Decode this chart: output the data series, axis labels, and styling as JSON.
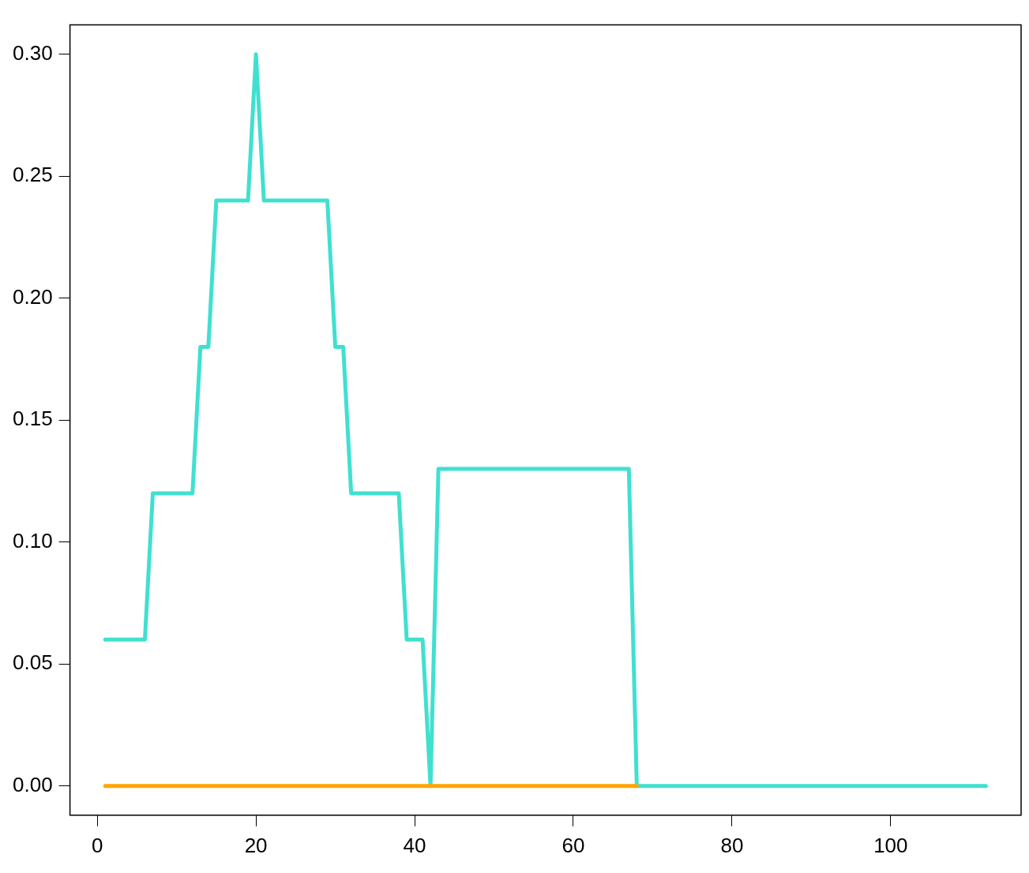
{
  "chart_data": {
    "type": "line",
    "xlim": [
      -3.44,
      116.44
    ],
    "ylim": [
      -0.012,
      0.312
    ],
    "xticks": [
      0,
      20,
      40,
      60,
      80,
      100
    ],
    "yticks": [
      {
        "value": 0,
        "label": "0.00"
      },
      {
        "value": 0.05,
        "label": "0.05"
      },
      {
        "value": 0.1,
        "label": "0.10"
      },
      {
        "value": 0.15,
        "label": "0.15"
      },
      {
        "value": 0.2,
        "label": "0.20"
      },
      {
        "value": 0.25,
        "label": "0.25"
      },
      {
        "value": 0.3,
        "label": "0.30"
      }
    ],
    "grid": false,
    "legend": false,
    "marker": "none",
    "line_style": "solid",
    "series": [
      {
        "color": "#ffa500",
        "x": [
          1,
          68
        ],
        "values": [
          0,
          0
        ]
      },
      {
        "color": "#40e0d0",
        "x": [
          1,
          6,
          7,
          12,
          13,
          14,
          15,
          19,
          20,
          21,
          29,
          30,
          31,
          32,
          38,
          39,
          41,
          42,
          43,
          67,
          68,
          112
        ],
        "values": [
          0.06,
          0.06,
          0.12,
          0.12,
          0.18,
          0.18,
          0.24,
          0.24,
          0.3,
          0.24,
          0.24,
          0.18,
          0.18,
          0.12,
          0.12,
          0.06,
          0.06,
          0,
          0.13,
          0.13,
          0,
          0
        ]
      }
    ]
  }
}
